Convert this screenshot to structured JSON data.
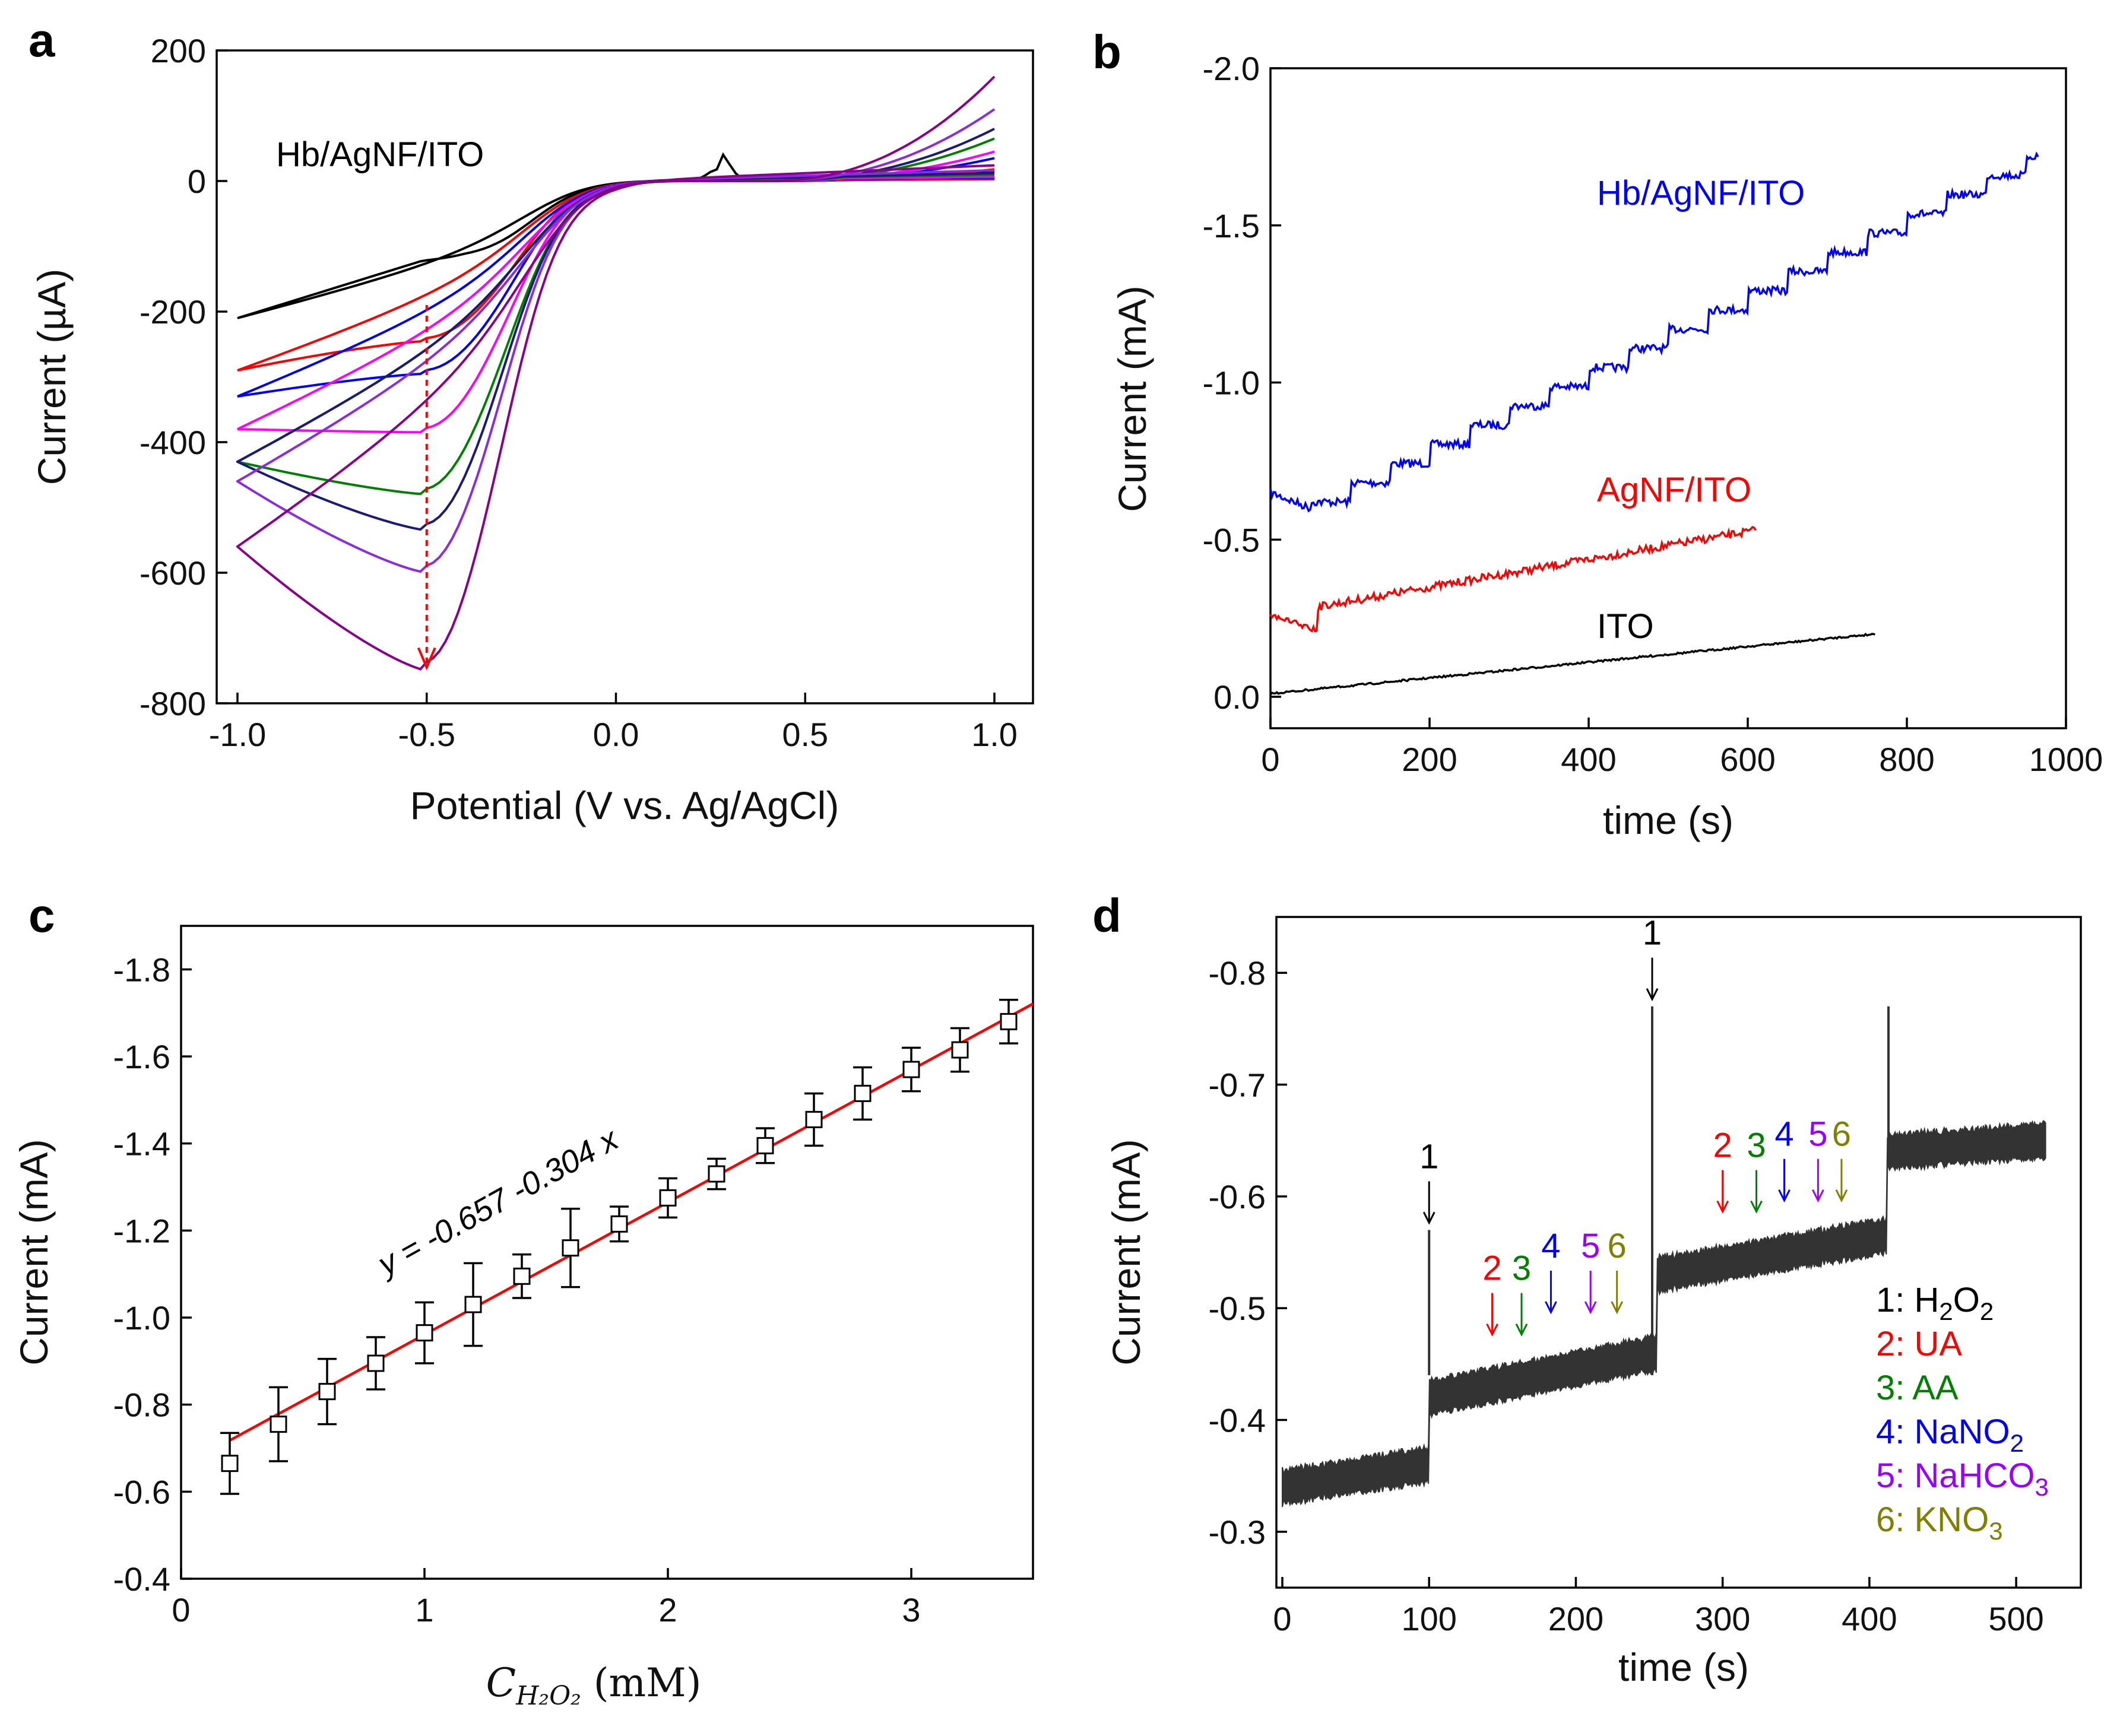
{
  "chart_data": [
    {
      "panel": "a",
      "type": "line",
      "xlabel": "Potential (V vs. Ag/AgCl)",
      "ylabel": "Current (µA)",
      "xlim": [
        -1.0,
        1.0
      ],
      "ylim": [
        -800,
        200
      ],
      "xticks": [
        "-1.0",
        "-0.5",
        "0.0",
        "0.5",
        "1.0"
      ],
      "yticks": [
        "200",
        "0",
        "-200",
        "-400",
        "-600",
        "-800"
      ],
      "annotation": "Hb/AgNF/ITO",
      "reference_curve": {
        "name": "AgNF/ITO",
        "color": "#000000",
        "start_current": -210,
        "shoulder_current": -120,
        "anodic_peak": {
          "x": 0.27,
          "y": 45
        },
        "end_current": 15
      },
      "series": [
        {
          "color": "#ff0000",
          "peak_current": -245,
          "start_current": -290,
          "end_current": 18
        },
        {
          "color": "#0000ff",
          "peak_current": -295,
          "start_current": -330,
          "end_current": 35
        },
        {
          "color": "#ff00ff",
          "peak_current": -385,
          "start_current": -380,
          "end_current": 45
        },
        {
          "color": "#008000",
          "peak_current": -480,
          "start_current": -430,
          "end_current": 65
        },
        {
          "color": "#1a1a7a",
          "peak_current": -535,
          "start_current": -430,
          "end_current": 80
        },
        {
          "color": "#8a2be2",
          "peak_current": -600,
          "start_current": -460,
          "end_current": 110
        },
        {
          "color": "#8b008b",
          "peak_current": -750,
          "start_current": -560,
          "end_current": 160
        }
      ],
      "peak_potential": -0.5
    },
    {
      "panel": "b",
      "type": "line",
      "xlabel": "time (s)",
      "ylabel": "Current (mA)",
      "xlim": [
        0,
        1000
      ],
      "ylim": [
        0.1,
        -2.0
      ],
      "xticks": [
        "0",
        "200",
        "400",
        "600",
        "800",
        "1000"
      ],
      "yticks": [
        "-2.0",
        "-1.5",
        "-1.0",
        "-0.5",
        "0.0"
      ],
      "series": [
        {
          "name": "Hb/AgNF/ITO",
          "color": "#0000ff",
          "start": -0.65,
          "end": -1.72,
          "t_end": 965,
          "steps_every_s": 50
        },
        {
          "name": "AgNF/ITO",
          "color": "#ff0000",
          "start": -0.26,
          "end": -0.53,
          "t_end": 610
        },
        {
          "name": "ITO",
          "color": "#000000",
          "start": -0.01,
          "end": -0.2,
          "t_end": 760
        }
      ]
    },
    {
      "panel": "c",
      "type": "scatter",
      "xlabel": "C",
      "xlabel_sub": "H₂O₂",
      "xlabel_unit": " (mM)",
      "ylabel": "Current (mA)",
      "xlim": [
        0,
        3.5
      ],
      "ylim": [
        -0.4,
        -1.9
      ],
      "xticks": [
        "0",
        "1",
        "2",
        "3"
      ],
      "yticks": [
        "-1.8",
        "-1.6",
        "-1.4",
        "-1.2",
        "-1.0",
        "-0.8",
        "-0.6",
        "-0.4"
      ],
      "equation": "y = -0.657 -0.304 x",
      "fit": {
        "intercept": -0.657,
        "slope": -0.304,
        "color": "#ff0000"
      },
      "x": [
        0.2,
        0.4,
        0.6,
        0.8,
        1.0,
        1.2,
        1.4,
        1.6,
        1.8,
        2.0,
        2.2,
        2.4,
        2.6,
        2.8,
        3.0,
        3.2,
        3.4
      ],
      "y": [
        -0.665,
        -0.755,
        -0.83,
        -0.895,
        -0.965,
        -1.03,
        -1.095,
        -1.16,
        -1.215,
        -1.275,
        -1.33,
        -1.395,
        -1.455,
        -1.515,
        -1.57,
        -1.615,
        -1.68
      ],
      "err": [
        0.07,
        0.085,
        0.075,
        0.06,
        0.07,
        0.095,
        0.05,
        0.09,
        0.04,
        0.045,
        0.035,
        0.04,
        0.06,
        0.06,
        0.05,
        0.05,
        0.05
      ]
    },
    {
      "panel": "d",
      "type": "line",
      "xlabel": "time (s)",
      "ylabel": "Current (mA)",
      "xlim": [
        0,
        540
      ],
      "ylim": [
        -0.25,
        -0.85
      ],
      "xticks": [
        "0",
        "100",
        "200",
        "300",
        "400",
        "500"
      ],
      "yticks": [
        "-0.8",
        "-0.7",
        "-0.6",
        "-0.5",
        "-0.4",
        "-0.3"
      ],
      "trace_color": "#333333",
      "levels": [
        {
          "t0": 0,
          "t1": 100,
          "current": -0.34
        },
        {
          "t0": 100,
          "t1": 255,
          "current": -0.44
        },
        {
          "t0": 255,
          "t1": 412,
          "current": -0.55
        },
        {
          "t0": 412,
          "t1": 520,
          "current": -0.65
        }
      ],
      "spikes": [
        {
          "t": 100,
          "current": -0.57
        },
        {
          "t": 252,
          "current": -0.77
        },
        {
          "t": 413,
          "current": -0.77
        }
      ],
      "arrows": [
        {
          "label": "1",
          "t": 100,
          "current": -0.57,
          "color": "#000000"
        },
        {
          "label": "2",
          "t": 143,
          "current": -0.47,
          "color": "#ff0000"
        },
        {
          "label": "3",
          "t": 163,
          "current": -0.47,
          "color": "#008000"
        },
        {
          "label": "4",
          "t": 183,
          "current": -0.49,
          "color": "#0000ff"
        },
        {
          "label": "5",
          "t": 210,
          "current": -0.49,
          "color": "#9900ff"
        },
        {
          "label": "6",
          "t": 228,
          "current": -0.49,
          "color": "#808000"
        },
        {
          "label": "1",
          "t": 252,
          "current": -0.77,
          "color": "#000000"
        },
        {
          "label": "2",
          "t": 300,
          "current": -0.58,
          "color": "#ff0000"
        },
        {
          "label": "3",
          "t": 323,
          "current": -0.58,
          "color": "#008000"
        },
        {
          "label": "4",
          "t": 342,
          "current": -0.59,
          "color": "#0000ff"
        },
        {
          "label": "5",
          "t": 365,
          "current": -0.59,
          "color": "#9900ff"
        },
        {
          "label": "6",
          "t": 381,
          "current": -0.59,
          "color": "#808000"
        }
      ],
      "legend": [
        {
          "num": "1: ",
          "text": "H",
          "sub": "2",
          "text2": "O",
          "sub2": "2",
          "color": "#000000"
        },
        {
          "num": "2: ",
          "text": "UA",
          "color": "#ff0000"
        },
        {
          "num": "3: ",
          "text": "AA",
          "color": "#008000"
        },
        {
          "num": "4: ",
          "text": "NaNO",
          "sub": "2",
          "color": "#0000ff"
        },
        {
          "num": "5: ",
          "text": "NaHCO",
          "sub": "3",
          "color": "#9900ff"
        },
        {
          "num": "6: ",
          "text": "KNO",
          "sub": "3",
          "color": "#808000"
        }
      ]
    }
  ],
  "panel_labels": [
    "a",
    "b",
    "c",
    "d"
  ]
}
